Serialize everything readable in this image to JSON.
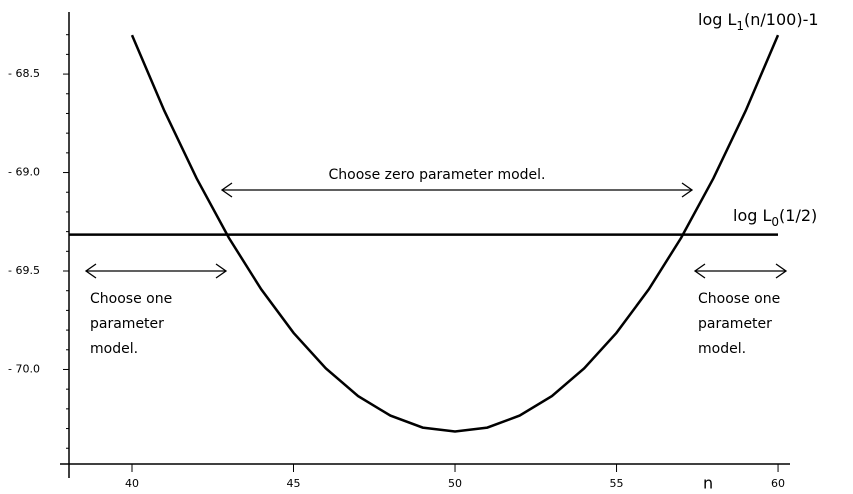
{
  "chart_data": {
    "type": "line",
    "x_label": "n",
    "xlim": [
      38.05,
      60.37
    ],
    "ylim": [
      -70.48,
      -68.2
    ],
    "xticks": [
      40,
      45,
      50,
      55,
      60
    ],
    "yticks": [
      {
        "value": -68.5,
        "label": "- 68.5"
      },
      {
        "value": -69.0,
        "label": "- 69.0"
      },
      {
        "value": -69.5,
        "label": "- 69.5"
      },
      {
        "value": -70.0,
        "label": "- 70.0"
      }
    ],
    "y_minor_ticks": [
      -68.3,
      -68.4,
      -68.6,
      -68.7,
      -68.8,
      -68.9,
      -69.1,
      -69.2,
      -69.3,
      -69.4,
      -69.6,
      -69.7,
      -69.8,
      -69.9,
      -70.1,
      -70.2,
      -70.3,
      -70.4
    ],
    "series": [
      {
        "label": {
          "main": "log L",
          "sub": "1",
          "tail": "(n/100)-1"
        },
        "color": "#000000",
        "x": [
          40,
          41,
          42,
          43,
          44,
          45,
          46,
          47,
          48,
          49,
          50,
          51,
          52,
          53,
          54,
          55,
          56,
          57,
          58,
          59,
          60
        ],
        "values": [
          -68.302,
          -68.686,
          -69.029,
          -69.332,
          -69.593,
          -69.814,
          -69.994,
          -70.135,
          -70.234,
          -70.295,
          -70.315,
          -70.295,
          -70.234,
          -70.135,
          -69.994,
          -69.814,
          -69.593,
          -69.332,
          -69.029,
          -68.686,
          -68.302
        ]
      },
      {
        "label": {
          "main": "log L",
          "sub": "0",
          "tail": "(1/2)"
        },
        "color": "#000000",
        "x": [
          38.05,
          60
        ],
        "values": [
          -69.315,
          -69.315
        ]
      }
    ],
    "annotations": {
      "zero": "Choose zero parameter model.",
      "left": [
        "Choose one",
        "parameter",
        "model."
      ],
      "right": [
        "Choose one",
        "parameter",
        "model."
      ]
    }
  }
}
